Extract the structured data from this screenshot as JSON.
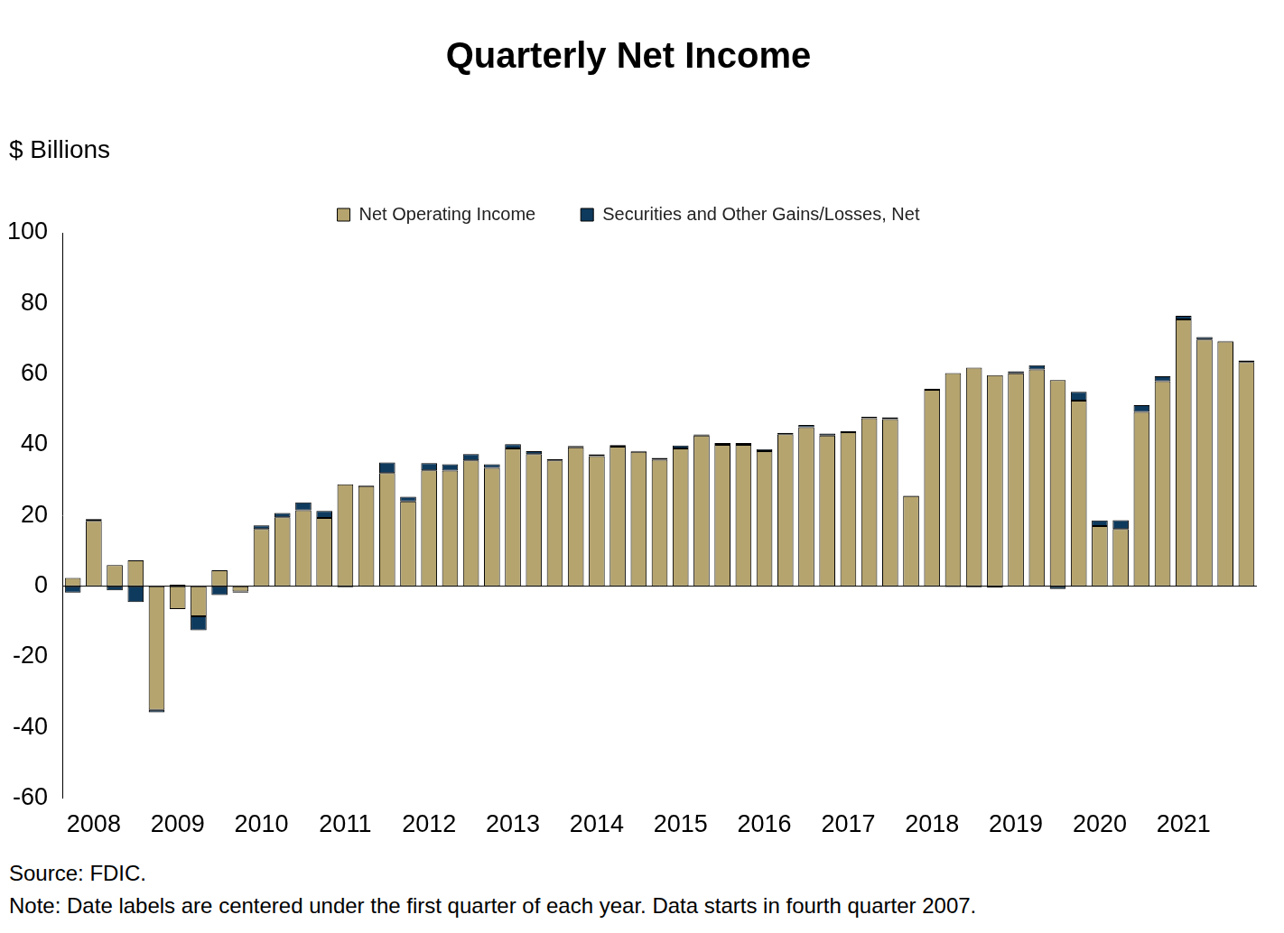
{
  "chart_data": {
    "type": "bar",
    "title": "Quarterly Net Income",
    "y_label": "$ Billions",
    "source": "Source: FDIC.",
    "note": "Note: Date labels are centered under the first quarter of each year. Data starts in fourth quarter 2007.",
    "stacked": true,
    "grid": false,
    "legend": "top",
    "categories": [
      null,
      "2008",
      null,
      null,
      null,
      "2009",
      null,
      null,
      null,
      "2010",
      null,
      null,
      null,
      "2011",
      null,
      null,
      null,
      "2012",
      null,
      null,
      null,
      "2013",
      null,
      null,
      null,
      "2014",
      null,
      null,
      null,
      "2015",
      null,
      null,
      null,
      "2016",
      null,
      null,
      null,
      "2017",
      null,
      null,
      null,
      "2018",
      null,
      null,
      null,
      "2019",
      null,
      null,
      null,
      "2020",
      null,
      null,
      null,
      "2021",
      null,
      null,
      null
    ],
    "series": [
      {
        "name": "Net Operating Income",
        "color": "#b5a46e",
        "values": [
          2.3,
          18.5,
          6,
          7.3,
          -35,
          -6.5,
          -8.5,
          4.5,
          -1.5,
          16.2,
          19.5,
          21.5,
          19.3,
          28.8,
          28.3,
          32,
          24,
          32.8,
          32.7,
          35.6,
          33.5,
          39,
          37.4,
          35.6,
          39.3,
          36.8,
          39.5,
          38,
          35.8,
          39,
          42.6,
          40,
          40,
          38.2,
          43,
          45,
          42.6,
          43.6,
          47.5,
          47.3,
          25.5,
          55.6,
          60.3,
          61.8,
          59.7,
          60.2,
          61.3,
          58.3,
          52.5,
          17,
          16.2,
          49.3,
          58,
          75.5,
          69.8,
          69.2,
          63.4
        ]
      },
      {
        "name": "Securities and Other Gains/Losses, Net",
        "color": "#0e3a5e",
        "values": [
          -1.8,
          0.5,
          -1.2,
          -4.5,
          -0.7,
          0.4,
          -4,
          -2.5,
          -0.3,
          1,
          1.2,
          2.2,
          2,
          -0.3,
          0.2,
          3,
          1.3,
          2,
          1.8,
          1.8,
          1,
          1.2,
          0.8,
          0.4,
          0.4,
          0.5,
          0.4,
          0.3,
          0.5,
          0.8,
          0.3,
          0.5,
          0.5,
          0.6,
          0.4,
          0.6,
          0.6,
          0.3,
          0.5,
          0.5,
          0.1,
          0.3,
          -0.2,
          -0.3,
          -0.4,
          0.6,
          1.2,
          -0.8,
          2.5,
          1.6,
          2.5,
          1.9,
          1.4,
          1,
          0.7,
          0.2,
          0.5
        ]
      }
    ],
    "ylim": [
      -60,
      100
    ],
    "yticks": [
      -60,
      -40,
      -20,
      0,
      20,
      40,
      60,
      80,
      100
    ]
  }
}
